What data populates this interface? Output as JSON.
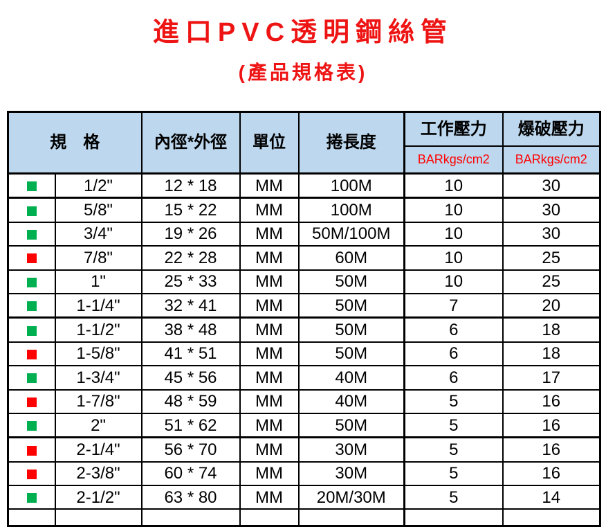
{
  "title": "進口PVC透明鋼絲管",
  "subtitle": "(產品規格表)",
  "table": {
    "headers": {
      "spec": "規　格",
      "diameter": "內徑*外徑",
      "unit": "單位",
      "length": "捲長度",
      "working_pressure": "工作壓力",
      "burst_pressure": "爆破壓力",
      "working_pressure_unit": "BARkgs/cm2",
      "burst_pressure_unit": "BARkgs/cm2"
    },
    "rows": [
      {
        "bullet": "green",
        "size": "1/2\"",
        "diameter": "12 * 18",
        "unit": "MM",
        "length": "100M",
        "working": "10",
        "burst": "30"
      },
      {
        "bullet": "green",
        "size": "5/8\"",
        "diameter": "15 * 22",
        "unit": "MM",
        "length": "100M",
        "working": "10",
        "burst": "30"
      },
      {
        "bullet": "green",
        "size": "3/4\"",
        "diameter": "19 * 26",
        "unit": "MM",
        "length": "50M/100M",
        "working": "10",
        "burst": "30"
      },
      {
        "bullet": "red",
        "size": "7/8\"",
        "diameter": "22 * 28",
        "unit": "MM",
        "length": "60M",
        "working": "10",
        "burst": "25"
      },
      {
        "bullet": "green",
        "size": "1\"",
        "diameter": "25 * 33",
        "unit": "MM",
        "length": "50M",
        "working": "10",
        "burst": "25"
      },
      {
        "bullet": "green",
        "size": "1-1/4\"",
        "diameter": "32 * 41",
        "unit": "MM",
        "length": "50M",
        "working": "7",
        "burst": "20"
      },
      {
        "bullet": "green",
        "size": "1-1/2\"",
        "diameter": "38 * 48",
        "unit": "MM",
        "length": "50M",
        "working": "6",
        "burst": "18"
      },
      {
        "bullet": "red",
        "size": "1-5/8\"",
        "diameter": "41 * 51",
        "unit": "MM",
        "length": "50M",
        "working": "6",
        "burst": "18"
      },
      {
        "bullet": "green",
        "size": "1-3/4\"",
        "diameter": "45 * 56",
        "unit": "MM",
        "length": "40M",
        "working": "6",
        "burst": "17"
      },
      {
        "bullet": "red",
        "size": "1-7/8\"",
        "diameter": "48 * 59",
        "unit": "MM",
        "length": "40M",
        "working": "5",
        "burst": "16"
      },
      {
        "bullet": "green",
        "size": "2\"",
        "diameter": "51 * 62",
        "unit": "MM",
        "length": "50M",
        "working": "5",
        "burst": "16"
      },
      {
        "bullet": "red",
        "size": "2-1/4\"",
        "diameter": "56 * 70",
        "unit": "MM",
        "length": "30M",
        "working": "5",
        "burst": "16"
      },
      {
        "bullet": "red",
        "size": "2-3/8\"",
        "diameter": "60 * 74",
        "unit": "MM",
        "length": "30M",
        "working": "5",
        "burst": "16"
      },
      {
        "bullet": "green",
        "size": "2-1/2\"",
        "diameter": "63 * 80",
        "unit": "MM",
        "length": "20M/30M",
        "working": "5",
        "burst": "14"
      }
    ]
  },
  "colors": {
    "title_red": "#ee1414",
    "pressure_unit_red": "#ff0000",
    "header_bg": "#bdd7ee",
    "bullet_green": "#00b050",
    "bullet_red": "#ff0000",
    "border_black": "#000000"
  }
}
